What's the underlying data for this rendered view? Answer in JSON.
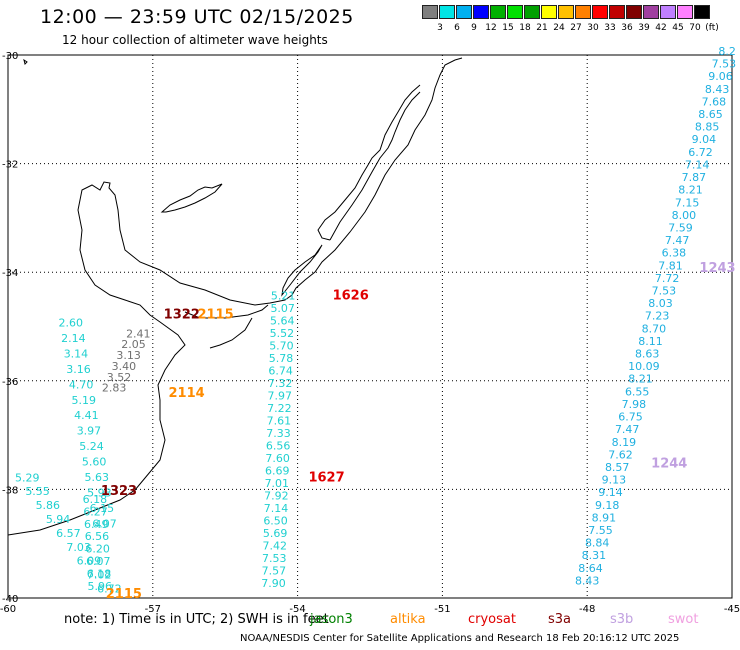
{
  "header": {
    "title": "12:00 — 23:59 UTC 02/15/2025",
    "subtitle": "12 hour collection of altimeter wave heights"
  },
  "legend": {
    "colors": [
      "#7f7f7f",
      "#00e5e5",
      "#00b0f0",
      "#0000ff",
      "#00b000",
      "#00e000",
      "#00a000",
      "#ffff00",
      "#ffc000",
      "#ff8000",
      "#ff0000",
      "#c00000",
      "#800000",
      "#a040a0",
      "#c080ff",
      "#ff80ff",
      "#000000"
    ],
    "labels": [
      "3",
      "6",
      "9",
      "12",
      "15",
      "18",
      "21",
      "24",
      "27",
      "30",
      "33",
      "36",
      "39",
      "42",
      "45",
      "70",
      "(ft)"
    ]
  },
  "axes": {
    "x_labels": [
      "-60",
      "-57",
      "-54",
      "-51",
      "-48",
      "-45"
    ],
    "y_labels": [
      "-30",
      "-32",
      "-34",
      "-36",
      "-38",
      "-40"
    ]
  },
  "note": {
    "text": "note:  1) Time is in UTC;  2) SWH is in feet",
    "satellites": [
      {
        "name": "jason3",
        "color": "#008000"
      },
      {
        "name": "altika",
        "color": "#ff8c00"
      },
      {
        "name": "cryosat",
        "color": "#e00000"
      },
      {
        "name": "s3a",
        "color": "#800000"
      },
      {
        "name": "s3b",
        "color": "#c0a0e0"
      },
      {
        "name": "swot",
        "color": "#f0a0e0"
      }
    ]
  },
  "credit": "NOAA/NESDIS Center for Satellite Applications and Research    18 Feb 20:16:12 UTC 2025",
  "passes": [
    {
      "label": "1322",
      "color": "#800000",
      "lon": -56.4,
      "lat": -34.85
    },
    {
      "label": "2115",
      "color": "#ff8c00",
      "lon": -55.7,
      "lat": -34.85
    },
    {
      "label": "1626",
      "color": "#e00000",
      "lon": -52.9,
      "lat": -34.5
    },
    {
      "label": "2114",
      "color": "#ff8c00",
      "lon": -56.3,
      "lat": -36.3
    },
    {
      "label": "1627",
      "color": "#e00000",
      "lon": -53.4,
      "lat": -37.85
    },
    {
      "label": "1323",
      "color": "#800000",
      "lon": -57.7,
      "lat": -38.1
    },
    {
      "label": "2115",
      "color": "#ff8c00",
      "lon": -57.6,
      "lat": -40.0
    },
    {
      "label": "1243",
      "color": "#c0a0e0",
      "lon": -45.3,
      "lat": -34.0
    },
    {
      "label": "1244",
      "color": "#c0a0e0",
      "lon": -46.3,
      "lat": -37.6
    }
  ],
  "tracks": [
    {
      "name": "west-track",
      "lon0": -58.7,
      "lat0": -35.0,
      "lon1": -58.0,
      "lat1": -38.7,
      "color": "#20d0d0",
      "values": [
        "2.60",
        "2.14",
        "3.14",
        "3.16",
        "4.70",
        "5.19",
        "4.41",
        "3.97",
        "5.24",
        "5.60",
        "5.63",
        "5.93",
        "6.15",
        "6.07"
      ]
    },
    {
      "name": "west-track-gray",
      "lon0": -57.3,
      "lat0": -35.2,
      "lon1": -57.8,
      "lat1": -36.2,
      "color": "#707070",
      "values": [
        "2.41",
        "2.05",
        "3.13",
        "3.40",
        "3.52",
        "2.83"
      ]
    },
    {
      "name": "southwest-track",
      "lon0": -59.6,
      "lat0": -37.85,
      "lon1": -57.9,
      "lat1": -39.9,
      "color": "#20d0d0",
      "values": [
        "5.29",
        "5.55",
        "5.86",
        "5.94",
        "6.57",
        "7.03",
        "6.09",
        "7.02",
        "6.72"
      ]
    },
    {
      "name": "southwest-track-2",
      "lon0": -58.2,
      "lat0": -38.25,
      "lon1": -58.1,
      "lat1": -39.85,
      "color": "#20d0d0",
      "values": [
        "6.18",
        "6.27",
        "6.49",
        "6.56",
        "6.20",
        "6.07",
        "6.18",
        "5.96"
      ]
    },
    {
      "name": "center-track",
      "lon0": -54.3,
      "lat0": -34.5,
      "lon1": -54.5,
      "lat1": -39.8,
      "color": "#20d0d0",
      "values": [
        "5.21",
        "5.07",
        "5.64",
        "5.52",
        "5.70",
        "5.78",
        "6.74",
        "7.32",
        "7.97",
        "7.22",
        "7.61",
        "7.33",
        "6.56",
        "7.60",
        "6.69",
        "7.01",
        "7.92",
        "7.14",
        "6.50",
        "5.69",
        "7.42",
        "7.53",
        "7.57",
        "7.90"
      ]
    },
    {
      "name": "east-track",
      "lon0": -45.1,
      "lat0": -30.0,
      "lon1": -48.0,
      "lat1": -39.75,
      "color": "#20b0e0",
      "values": [
        "8.2",
        "7.53",
        "9.06",
        "8.43",
        "7.68",
        "8.65",
        "8.85",
        "9.04",
        "6.72",
        "7.14",
        "7.87",
        "8.21",
        "7.15",
        "8.00",
        "7.59",
        "7.47",
        "6.38",
        "7.81",
        "7.72",
        "7.53",
        "8.03",
        "7.23",
        "8.70",
        "8.11",
        "8.63",
        "10.09",
        "8.21",
        "6.55",
        "7.98",
        "6.75",
        "7.47",
        "8.19",
        "7.62",
        "8.57",
        "9.13",
        "9.14",
        "9.18",
        "8.91",
        "7.55",
        "8.84",
        "8.31",
        "8.64",
        "8.43"
      ]
    }
  ]
}
